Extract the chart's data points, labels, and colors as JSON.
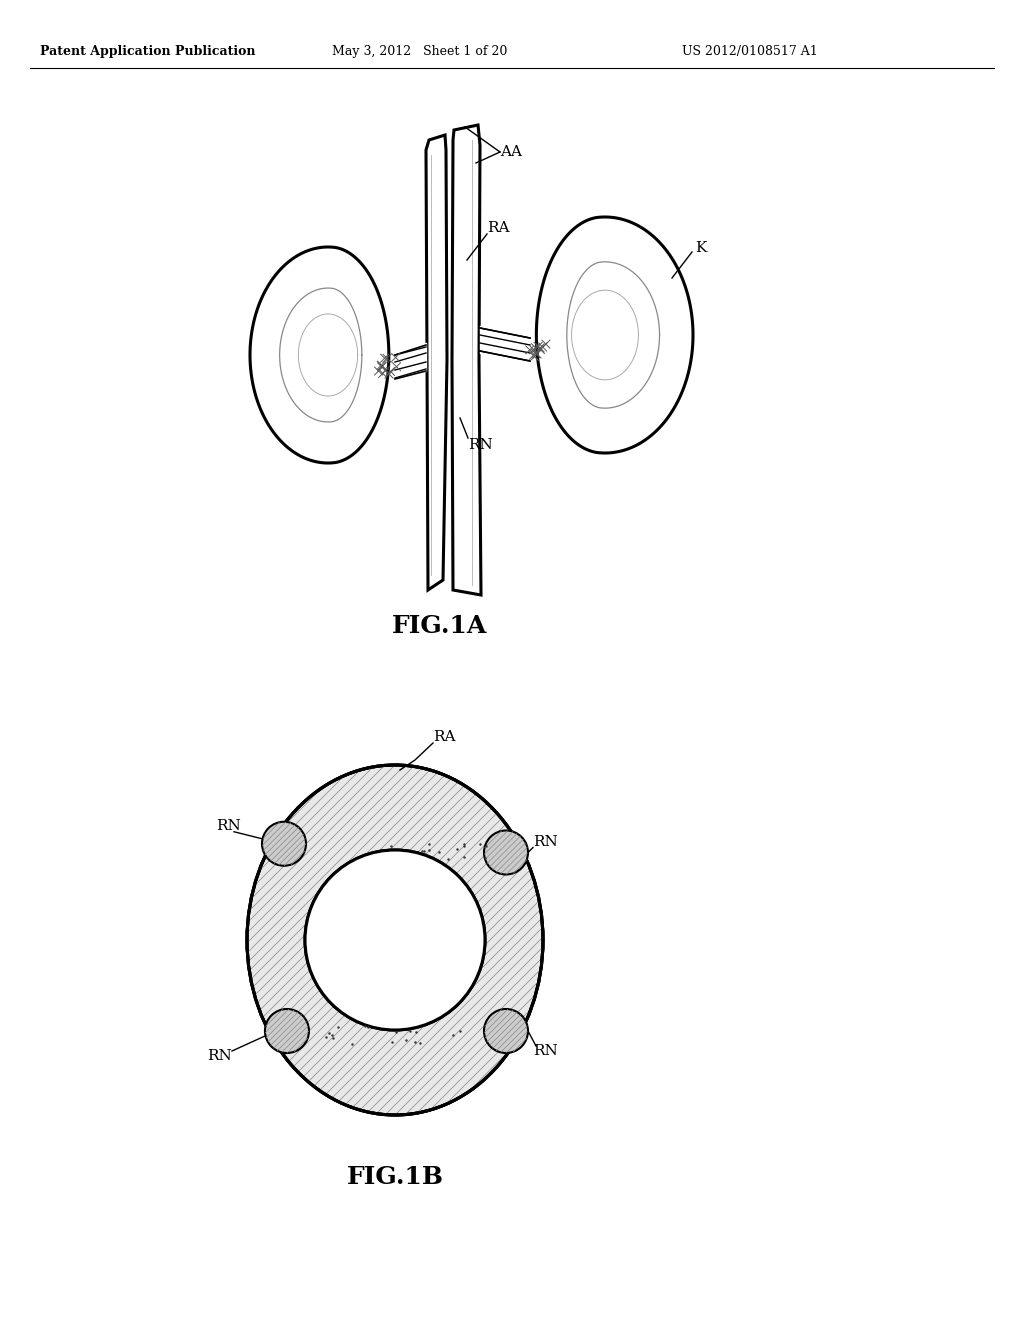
{
  "background_color": "#ffffff",
  "header_left": "Patent Application Publication",
  "header_center": "May 3, 2012   Sheet 1 of 20",
  "header_right": "US 2012/0108517 A1",
  "fig1a_label": "FIG.1A",
  "fig1b_label": "FIG.1B",
  "label_AA": "AA",
  "label_RA": "RA",
  "label_RN": "RN",
  "label_K": "K",
  "line_color": "#000000",
  "gray_fill": "#cccccc",
  "hatch_gray": "#999999"
}
